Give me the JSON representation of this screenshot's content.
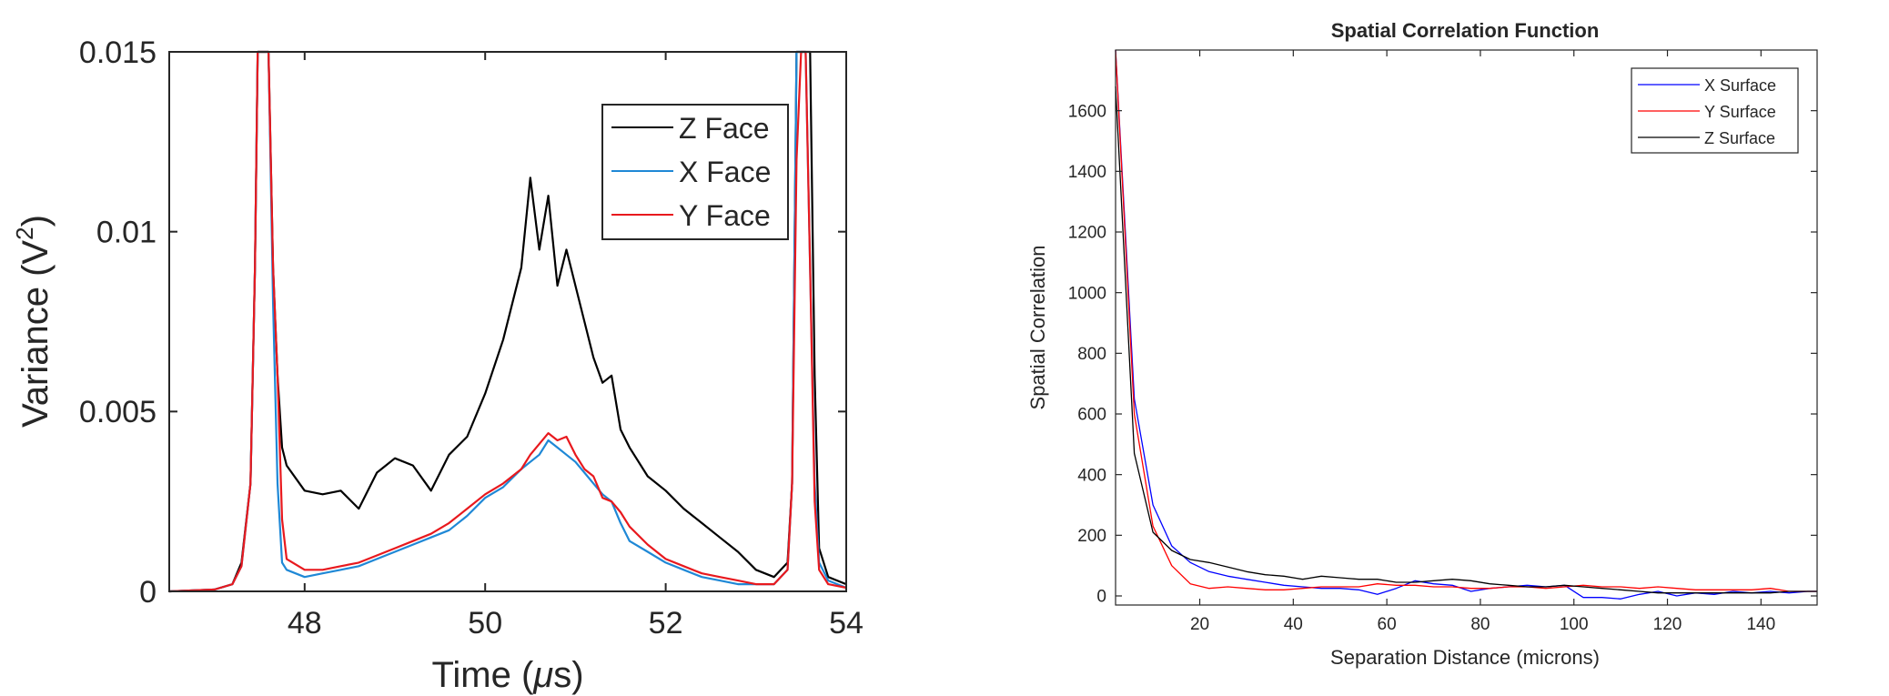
{
  "chart_data": [
    {
      "type": "line",
      "title": "",
      "xlabel_main": "Time (",
      "xlabel_mu": "μ",
      "xlabel_tail": "s)",
      "ylabel_main": "Variance (V",
      "ylabel_sup": "2",
      "ylabel_tail": ")",
      "xlim": [
        46.5,
        54
      ],
      "ylim": [
        0,
        0.015
      ],
      "xticks": [
        48,
        50,
        52,
        54
      ],
      "xtick_labels": [
        "48",
        "50",
        "52",
        "54"
      ],
      "yticks": [
        0,
        0.005,
        0.01,
        0.015
      ],
      "ytick_labels": [
        "0",
        "0.005",
        "0.01",
        "0.015"
      ],
      "legend_position": "top-right",
      "series": [
        {
          "name": "Z Face",
          "color": "#000000",
          "x": [
            46.5,
            47.0,
            47.2,
            47.3,
            47.4,
            47.45,
            47.48,
            47.5,
            47.55,
            47.6,
            47.65,
            47.7,
            47.75,
            47.8,
            48.0,
            48.2,
            48.4,
            48.6,
            48.8,
            49.0,
            49.2,
            49.4,
            49.6,
            49.8,
            50.0,
            50.2,
            50.4,
            50.5,
            50.6,
            50.7,
            50.8,
            50.9,
            51.0,
            51.1,
            51.2,
            51.3,
            51.4,
            51.5,
            51.6,
            51.8,
            52.0,
            52.2,
            52.4,
            52.6,
            52.8,
            53.0,
            53.2,
            53.35,
            53.4,
            53.45,
            53.5,
            53.55,
            53.6,
            53.65,
            53.7,
            53.8,
            54.0
          ],
          "y": [
            0.0,
            5e-05,
            0.0002,
            0.0008,
            0.003,
            0.009,
            0.015,
            0.015,
            0.015,
            0.015,
            0.009,
            0.006,
            0.004,
            0.0035,
            0.0028,
            0.0027,
            0.0028,
            0.0023,
            0.0033,
            0.0037,
            0.0035,
            0.0028,
            0.0038,
            0.0043,
            0.0055,
            0.007,
            0.009,
            0.0115,
            0.0095,
            0.011,
            0.0085,
            0.0095,
            0.0085,
            0.0075,
            0.0065,
            0.0058,
            0.006,
            0.0045,
            0.004,
            0.0032,
            0.0028,
            0.0023,
            0.0019,
            0.0015,
            0.0011,
            0.0006,
            0.0004,
            0.0008,
            0.003,
            0.015,
            0.015,
            0.015,
            0.015,
            0.006,
            0.0012,
            0.0004,
            0.0002
          ]
        },
        {
          "name": "X Face",
          "color": "#1f88d6",
          "x": [
            46.5,
            47.0,
            47.2,
            47.3,
            47.4,
            47.45,
            47.48,
            47.5,
            47.55,
            47.6,
            47.65,
            47.7,
            47.75,
            47.8,
            48.0,
            48.2,
            48.4,
            48.6,
            48.8,
            49.0,
            49.2,
            49.4,
            49.6,
            49.8,
            50.0,
            50.2,
            50.4,
            50.5,
            50.6,
            50.7,
            50.8,
            50.9,
            51.0,
            51.1,
            51.2,
            51.3,
            51.4,
            51.5,
            51.6,
            51.8,
            52.0,
            52.2,
            52.4,
            52.6,
            52.8,
            53.0,
            53.2,
            53.35,
            53.4,
            53.45,
            53.5,
            53.55,
            53.6,
            53.65,
            53.7,
            53.8,
            54.0
          ],
          "y": [
            0.0,
            5e-05,
            0.0002,
            0.0007,
            0.003,
            0.009,
            0.015,
            0.015,
            0.015,
            0.015,
            0.008,
            0.003,
            0.0008,
            0.0006,
            0.0004,
            0.0005,
            0.0006,
            0.0007,
            0.0009,
            0.0011,
            0.0013,
            0.0015,
            0.0017,
            0.0021,
            0.0026,
            0.0029,
            0.0034,
            0.0036,
            0.0038,
            0.0042,
            0.004,
            0.0038,
            0.0036,
            0.0033,
            0.003,
            0.0027,
            0.0025,
            0.0019,
            0.0014,
            0.0011,
            0.0008,
            0.0006,
            0.0004,
            0.0003,
            0.0002,
            0.0002,
            0.0002,
            0.0006,
            0.003,
            0.015,
            0.015,
            0.015,
            0.009,
            0.003,
            0.0008,
            0.0003,
            0.0001
          ]
        },
        {
          "name": "Y Face",
          "color": "#e8191e",
          "x": [
            46.5,
            47.0,
            47.2,
            47.3,
            47.4,
            47.45,
            47.48,
            47.5,
            47.55,
            47.6,
            47.65,
            47.7,
            47.75,
            47.8,
            48.0,
            48.2,
            48.4,
            48.6,
            48.8,
            49.0,
            49.2,
            49.4,
            49.6,
            49.8,
            50.0,
            50.2,
            50.4,
            50.5,
            50.6,
            50.7,
            50.8,
            50.9,
            51.0,
            51.1,
            51.2,
            51.3,
            51.4,
            51.5,
            51.6,
            51.8,
            52.0,
            52.2,
            52.4,
            52.6,
            52.8,
            53.0,
            53.2,
            53.35,
            53.4,
            53.45,
            53.5,
            53.55,
            53.6,
            53.65,
            53.7,
            53.8,
            54.0
          ],
          "y": [
            0.0,
            5e-05,
            0.0002,
            0.0007,
            0.003,
            0.009,
            0.015,
            0.015,
            0.015,
            0.015,
            0.009,
            0.006,
            0.002,
            0.0009,
            0.0006,
            0.0006,
            0.0007,
            0.0008,
            0.001,
            0.0012,
            0.0014,
            0.0016,
            0.0019,
            0.0023,
            0.0027,
            0.003,
            0.0034,
            0.0038,
            0.0041,
            0.0044,
            0.0042,
            0.0043,
            0.0038,
            0.0034,
            0.0032,
            0.0026,
            0.0025,
            0.0022,
            0.0018,
            0.0013,
            0.0009,
            0.0007,
            0.0005,
            0.0004,
            0.0003,
            0.0002,
            0.0002,
            0.0006,
            0.003,
            0.012,
            0.015,
            0.015,
            0.009,
            0.0025,
            0.0006,
            0.0002,
            0.0001
          ]
        }
      ]
    },
    {
      "type": "line",
      "title": "Spatial Correlation Function",
      "xlabel": "Separation Distance (microns)",
      "ylabel": "Spatial Correlation",
      "xlim": [
        2,
        152
      ],
      "ylim": [
        -30,
        1800
      ],
      "xticks": [
        20,
        40,
        60,
        80,
        100,
        120,
        140
      ],
      "xtick_labels": [
        "20",
        "40",
        "60",
        "80",
        "100",
        "120",
        "140"
      ],
      "yticks": [
        0,
        200,
        400,
        600,
        800,
        1000,
        1200,
        1400,
        1600
      ],
      "ytick_labels": [
        "0",
        "200",
        "400",
        "600",
        "800",
        "1000",
        "1200",
        "1400",
        "1600"
      ],
      "legend_position": "top-right",
      "series": [
        {
          "name": "X Surface",
          "color": "#0000ff",
          "x": [
            2,
            6,
            10,
            14,
            18,
            22,
            26,
            30,
            34,
            38,
            42,
            46,
            50,
            54,
            58,
            62,
            66,
            70,
            74,
            78,
            82,
            86,
            90,
            94,
            98,
            102,
            106,
            110,
            114,
            118,
            122,
            126,
            130,
            134,
            138,
            142,
            146,
            150,
            152
          ],
          "y": [
            1800,
            650,
            300,
            165,
            110,
            80,
            65,
            55,
            45,
            35,
            30,
            25,
            25,
            20,
            5,
            25,
            50,
            40,
            35,
            15,
            25,
            30,
            35,
            30,
            35,
            -5,
            -5,
            -10,
            5,
            15,
            0,
            10,
            5,
            15,
            10,
            15,
            10,
            15,
            15
          ]
        },
        {
          "name": "Y Surface",
          "color": "#ff0000",
          "x": [
            2,
            6,
            10,
            14,
            18,
            22,
            26,
            30,
            34,
            38,
            42,
            46,
            50,
            54,
            58,
            62,
            66,
            70,
            74,
            78,
            82,
            86,
            90,
            94,
            98,
            102,
            106,
            110,
            114,
            118,
            122,
            126,
            130,
            134,
            138,
            142,
            146,
            150,
            152
          ],
          "y": [
            1800,
            600,
            230,
            100,
            40,
            25,
            30,
            25,
            20,
            20,
            25,
            30,
            30,
            30,
            40,
            35,
            35,
            30,
            30,
            25,
            25,
            30,
            30,
            25,
            30,
            35,
            30,
            30,
            25,
            30,
            25,
            20,
            20,
            20,
            20,
            25,
            15,
            15,
            15
          ]
        },
        {
          "name": "Z Surface",
          "color": "#000000",
          "x": [
            2,
            6,
            10,
            14,
            18,
            22,
            26,
            30,
            34,
            38,
            42,
            46,
            50,
            54,
            58,
            62,
            66,
            70,
            74,
            78,
            82,
            86,
            90,
            94,
            98,
            102,
            106,
            110,
            114,
            118,
            122,
            126,
            130,
            134,
            138,
            142,
            146,
            150,
            152
          ],
          "y": [
            1680,
            470,
            210,
            150,
            120,
            110,
            95,
            80,
            70,
            65,
            55,
            65,
            60,
            55,
            55,
            45,
            45,
            50,
            55,
            50,
            40,
            35,
            30,
            30,
            35,
            30,
            25,
            20,
            15,
            10,
            10,
            10,
            10,
            10,
            10,
            10,
            15,
            15,
            15
          ]
        }
      ]
    }
  ]
}
